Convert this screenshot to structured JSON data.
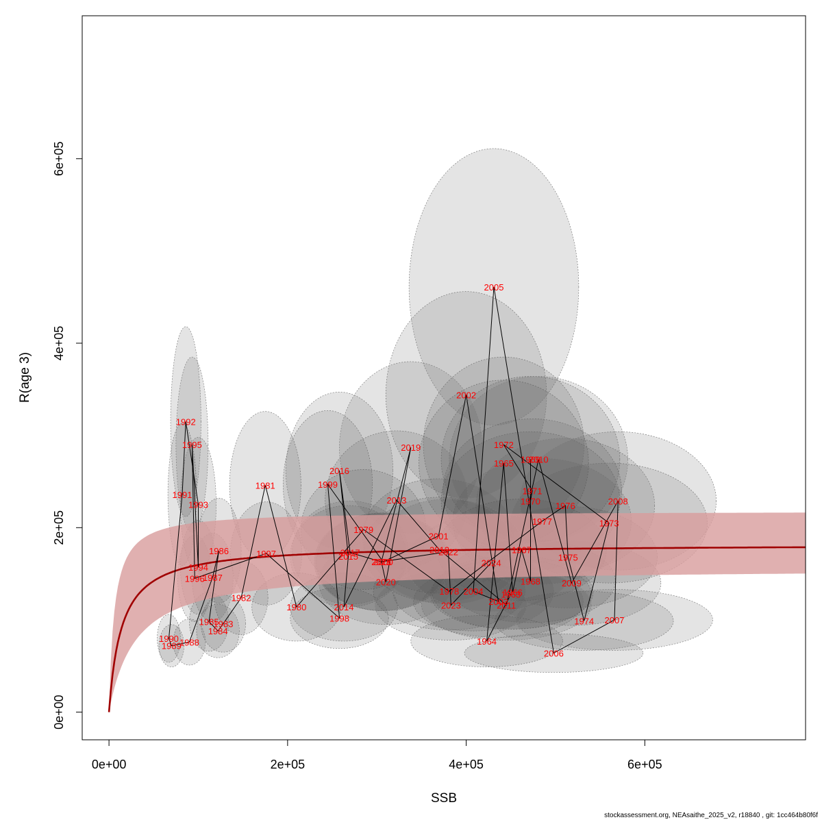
{
  "footer": "stockassessment.org, NEAsaithe_2025_v2, r18840 , git: 1cc464b80f6f",
  "chart_data": {
    "type": "scatter",
    "xlabel": "SSB",
    "ylabel": "R(age 3)",
    "xlim": [
      -30000,
      780000
    ],
    "ylim": [
      -30000,
      755000
    ],
    "x_ticks": [
      0,
      200000,
      400000,
      600000
    ],
    "x_tick_labels": [
      "0e+00",
      "2e+05",
      "4e+05",
      "6e+05"
    ],
    "y_ticks": [
      0,
      200000,
      400000,
      600000
    ],
    "y_tick_labels": [
      "0e+00",
      "2e+05",
      "4e+05",
      "6e+05"
    ],
    "colors": {
      "labels": "#ff0000",
      "fit_line": "#a00000",
      "fit_band": "#d89c9c",
      "ellipse_fill": "#5a5a5a",
      "path": "#000000"
    },
    "fit_curve": {
      "model": "Beverton-Holt",
      "asymptote": 182000,
      "half_saturation": 14000
    },
    "fit_band_bounds": {
      "upper_asymptote": 218000,
      "upper_half_saturation": 6000,
      "lower_asymptote": 156000,
      "lower_half_saturation": 30000
    },
    "points": [
      {
        "year": "1963",
        "ssb": 450000,
        "r": 128000,
        "sx": 90000,
        "sy": 38000
      },
      {
        "year": "1964",
        "ssb": 423000,
        "r": 77000,
        "sx": 85000,
        "sy": 28000
      },
      {
        "year": "1965",
        "ssb": 442000,
        "r": 270000,
        "sx": 95000,
        "sy": 90000
      },
      {
        "year": "1966",
        "ssb": 452000,
        "r": 130000,
        "sx": 90000,
        "sy": 40000
      },
      {
        "year": "1967",
        "ssb": 462000,
        "r": 176000,
        "sx": 95000,
        "sy": 55000
      },
      {
        "year": "1968",
        "ssb": 472000,
        "r": 142000,
        "sx": 95000,
        "sy": 45000
      },
      {
        "year": "1969",
        "ssb": 472000,
        "r": 274000,
        "sx": 100000,
        "sy": 90000
      },
      {
        "year": "1970",
        "ssb": 472000,
        "r": 229000,
        "sx": 100000,
        "sy": 75000
      },
      {
        "year": "1971",
        "ssb": 474000,
        "r": 240000,
        "sx": 100000,
        "sy": 78000
      },
      {
        "year": "1972",
        "ssb": 442000,
        "r": 290000,
        "sx": 90000,
        "sy": 95000
      },
      {
        "year": "1973",
        "ssb": 560000,
        "r": 205000,
        "sx": 110000,
        "sy": 65000
      },
      {
        "year": "1974",
        "ssb": 532000,
        "r": 99000,
        "sx": 100000,
        "sy": 32000
      },
      {
        "year": "1975",
        "ssb": 514000,
        "r": 168000,
        "sx": 100000,
        "sy": 55000
      },
      {
        "year": "1976",
        "ssb": 511000,
        "r": 224000,
        "sx": 100000,
        "sy": 73000
      },
      {
        "year": "1977",
        "ssb": 485000,
        "r": 207000,
        "sx": 100000,
        "sy": 68000
      },
      {
        "year": "1978",
        "ssb": 381000,
        "r": 131000,
        "sx": 85000,
        "sy": 42000
      },
      {
        "year": "1979",
        "ssb": 285000,
        "r": 198000,
        "sx": 70000,
        "sy": 65000
      },
      {
        "year": "1980",
        "ssb": 210000,
        "r": 114000,
        "sx": 50000,
        "sy": 37000
      },
      {
        "year": "1981",
        "ssb": 175000,
        "r": 246000,
        "sx": 40000,
        "sy": 80000
      },
      {
        "year": "1982",
        "ssb": 148000,
        "r": 124000,
        "sx": 30000,
        "sy": 40000
      },
      {
        "year": "1983",
        "ssb": 128000,
        "r": 96000,
        "sx": 25000,
        "sy": 31000
      },
      {
        "year": "1984",
        "ssb": 122000,
        "r": 88000,
        "sx": 24000,
        "sy": 29000
      },
      {
        "year": "1985",
        "ssb": 112000,
        "r": 98000,
        "sx": 22000,
        "sy": 32000
      },
      {
        "year": "1986",
        "ssb": 123000,
        "r": 175000,
        "sx": 25000,
        "sy": 57000
      },
      {
        "year": "1987",
        "ssb": 116000,
        "r": 146000,
        "sx": 23000,
        "sy": 48000
      },
      {
        "year": "1988",
        "ssb": 90000,
        "r": 76000,
        "sx": 18000,
        "sy": 25000
      },
      {
        "year": "1989",
        "ssb": 70000,
        "r": 72000,
        "sx": 14000,
        "sy": 23000
      },
      {
        "year": "1990",
        "ssb": 67000,
        "r": 80000,
        "sx": 13000,
        "sy": 26000
      },
      {
        "year": "1991",
        "ssb": 82000,
        "r": 236000,
        "sx": 16000,
        "sy": 77000
      },
      {
        "year": "1992",
        "ssb": 86000,
        "r": 315000,
        "sx": 17000,
        "sy": 103000
      },
      {
        "year": "1993",
        "ssb": 100000,
        "r": 225000,
        "sx": 20000,
        "sy": 73000
      },
      {
        "year": "1994",
        "ssb": 100000,
        "r": 157000,
        "sx": 20000,
        "sy": 51000
      },
      {
        "year": "1995",
        "ssb": 93000,
        "r": 290000,
        "sx": 18000,
        "sy": 95000
      },
      {
        "year": "1996",
        "ssb": 96000,
        "r": 145000,
        "sx": 19000,
        "sy": 47000
      },
      {
        "year": "1997",
        "ssb": 176000,
        "r": 172000,
        "sx": 40000,
        "sy": 56000
      },
      {
        "year": "1998",
        "ssb": 258000,
        "r": 102000,
        "sx": 55000,
        "sy": 33000
      },
      {
        "year": "1999",
        "ssb": 245000,
        "r": 247000,
        "sx": 50000,
        "sy": 80000
      },
      {
        "year": "2000",
        "ssb": 307000,
        "r": 163000,
        "sx": 75000,
        "sy": 53000
      },
      {
        "year": "2001",
        "ssb": 369000,
        "r": 191000,
        "sx": 85000,
        "sy": 62000
      },
      {
        "year": "2002",
        "ssb": 400000,
        "r": 344000,
        "sx": 90000,
        "sy": 112000
      },
      {
        "year": "2003",
        "ssb": 436000,
        "r": 120000,
        "sx": 95000,
        "sy": 39000
      },
      {
        "year": "2004",
        "ssb": 408000,
        "r": 131000,
        "sx": 90000,
        "sy": 43000
      },
      {
        "year": "2005",
        "ssb": 431000,
        "r": 461000,
        "sx": 95000,
        "sy": 150000
      },
      {
        "year": "2006",
        "ssb": 498000,
        "r": 64000,
        "sx": 100000,
        "sy": 21000
      },
      {
        "year": "2007",
        "ssb": 566000,
        "r": 100000,
        "sx": 110000,
        "sy": 33000
      },
      {
        "year": "2008",
        "ssb": 570000,
        "r": 229000,
        "sx": 110000,
        "sy": 75000
      },
      {
        "year": "2009",
        "ssb": 518000,
        "r": 140000,
        "sx": 100000,
        "sy": 46000
      },
      {
        "year": "2010",
        "ssb": 481000,
        "r": 274000,
        "sx": 100000,
        "sy": 90000
      },
      {
        "year": "2011",
        "ssb": 445000,
        "r": 116000,
        "sx": 95000,
        "sy": 38000
      },
      {
        "year": "2012",
        "ssb": 370000,
        "r": 176000,
        "sx": 85000,
        "sy": 57000
      },
      {
        "year": "2013",
        "ssb": 322000,
        "r": 230000,
        "sx": 80000,
        "sy": 75000
      },
      {
        "year": "2014",
        "ssb": 263000,
        "r": 114000,
        "sx": 60000,
        "sy": 37000
      },
      {
        "year": "2015",
        "ssb": 268000,
        "r": 169000,
        "sx": 65000,
        "sy": 55000
      },
      {
        "year": "2016",
        "ssb": 258000,
        "r": 262000,
        "sx": 60000,
        "sy": 85000
      },
      {
        "year": "2017",
        "ssb": 270000,
        "r": 173000,
        "sx": 65000,
        "sy": 56000
      },
      {
        "year": "2018",
        "ssb": 305000,
        "r": 163000,
        "sx": 75000,
        "sy": 53000
      },
      {
        "year": "2019",
        "ssb": 338000,
        "r": 287000,
        "sx": 80000,
        "sy": 93000
      },
      {
        "year": "2020",
        "ssb": 310000,
        "r": 141000,
        "sx": 75000,
        "sy": 46000
      },
      {
        "year": "2021",
        "ssb": 305000,
        "r": 163000,
        "sx": 75000,
        "sy": 53000
      },
      {
        "year": "2022",
        "ssb": 380000,
        "r": 174000,
        "sx": 85000,
        "sy": 57000
      },
      {
        "year": "2023",
        "ssb": 383000,
        "r": 116000,
        "sx": 85000,
        "sy": 38000
      },
      {
        "year": "2024",
        "ssb": 428000,
        "r": 162000,
        "sx": 95000,
        "sy": 53000
      }
    ]
  }
}
